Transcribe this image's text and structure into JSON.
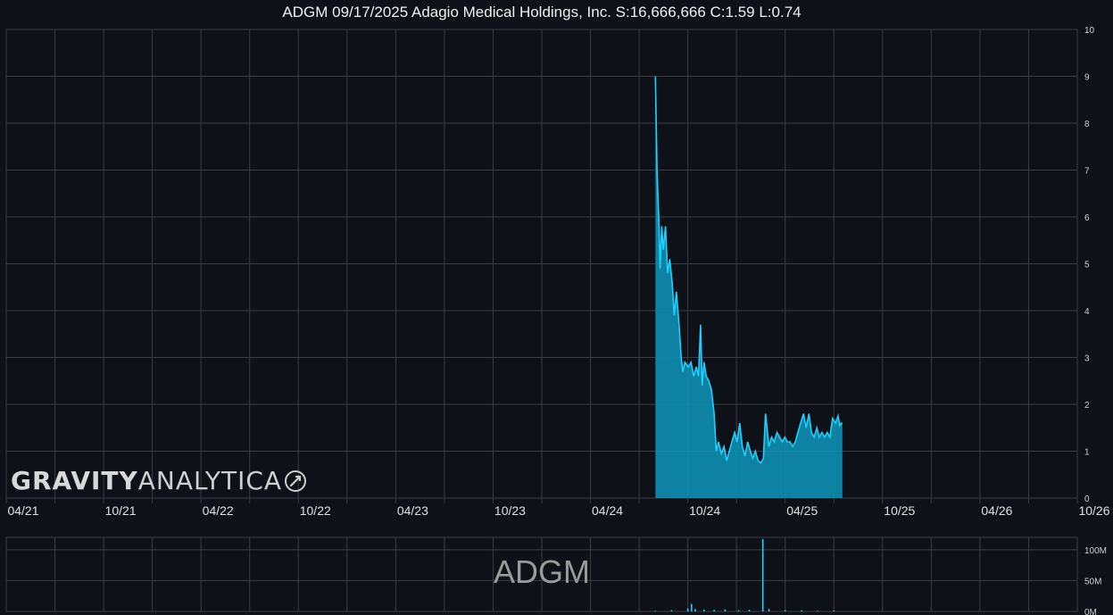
{
  "title": "ADGM 09/17/2025 Adagio Medical Holdings, Inc. S:16,666,666 C:1.59 L:0.74",
  "watermark": {
    "bold": "GRAVITY",
    "light": "ANALYTICA"
  },
  "volume_label": "ADGM",
  "colors": {
    "background": "#0e1117",
    "grid": "#3a3d44",
    "line": "#1fd0ff",
    "fill": "#0e8fb3"
  },
  "chart_data": [
    {
      "type": "area",
      "title": "ADGM 09/17/2025 Adagio Medical Holdings, Inc. S:16,666,666 C:1.59 L:0.74",
      "xlabel": "",
      "ylabel": "",
      "x_range": [
        "2021-04",
        "2026-10"
      ],
      "ylim": [
        0,
        10
      ],
      "grid": true,
      "x_ticks": [
        "04/21",
        "10/21",
        "04/22",
        "10/22",
        "04/23",
        "10/23",
        "04/24",
        "10/24",
        "04/25",
        "10/25",
        "04/26",
        "10/26"
      ],
      "y_ticks": [
        0,
        1,
        2,
        3,
        4,
        5,
        6,
        7,
        8,
        9,
        10
      ],
      "points": [
        [
          "2024-08-01",
          9.0
        ],
        [
          "2024-08-04",
          7.0
        ],
        [
          "2024-08-08",
          5.8
        ],
        [
          "2024-08-10",
          4.9
        ],
        [
          "2024-08-13",
          5.8
        ],
        [
          "2024-08-16",
          5.3
        ],
        [
          "2024-08-20",
          5.8
        ],
        [
          "2024-08-24",
          4.8
        ],
        [
          "2024-08-28",
          5.1
        ],
        [
          "2024-09-02",
          4.6
        ],
        [
          "2024-09-06",
          3.9
        ],
        [
          "2024-09-10",
          4.4
        ],
        [
          "2024-09-15",
          3.7
        ],
        [
          "2024-09-19",
          3.0
        ],
        [
          "2024-09-22",
          2.7
        ],
        [
          "2024-09-26",
          2.9
        ],
        [
          "2024-10-02",
          2.8
        ],
        [
          "2024-10-07",
          2.9
        ],
        [
          "2024-10-12",
          2.6
        ],
        [
          "2024-10-17",
          2.8
        ],
        [
          "2024-10-21",
          2.6
        ],
        [
          "2024-10-25",
          3.7
        ],
        [
          "2024-10-28",
          2.4
        ],
        [
          "2024-11-01",
          2.9
        ],
        [
          "2024-11-05",
          2.6
        ],
        [
          "2024-11-10",
          2.5
        ],
        [
          "2024-11-15",
          2.3
        ],
        [
          "2024-11-20",
          1.8
        ],
        [
          "2024-11-24",
          1.0
        ],
        [
          "2024-11-28",
          1.2
        ],
        [
          "2024-12-03",
          0.95
        ],
        [
          "2024-12-08",
          1.1
        ],
        [
          "2024-12-13",
          0.8
        ],
        [
          "2024-12-18",
          1.0
        ],
        [
          "2024-12-23",
          1.2
        ],
        [
          "2024-12-28",
          1.4
        ],
        [
          "2025-01-02",
          1.2
        ],
        [
          "2025-01-07",
          1.6
        ],
        [
          "2025-01-12",
          1.1
        ],
        [
          "2025-01-17",
          0.9
        ],
        [
          "2025-01-22",
          1.2
        ],
        [
          "2025-01-27",
          1.0
        ],
        [
          "2025-02-01",
          0.85
        ],
        [
          "2025-02-06",
          1.0
        ],
        [
          "2025-02-11",
          0.8
        ],
        [
          "2025-02-16",
          0.75
        ],
        [
          "2025-02-21",
          0.85
        ],
        [
          "2025-02-25",
          1.8
        ],
        [
          "2025-03-01",
          1.1
        ],
        [
          "2025-03-06",
          1.3
        ],
        [
          "2025-03-11",
          1.2
        ],
        [
          "2025-03-16",
          1.4
        ],
        [
          "2025-03-21",
          1.3
        ],
        [
          "2025-03-26",
          1.2
        ],
        [
          "2025-03-31",
          1.3
        ],
        [
          "2025-04-05",
          1.2
        ],
        [
          "2025-04-10",
          1.2
        ],
        [
          "2025-04-15",
          1.1
        ],
        [
          "2025-04-20",
          1.2
        ],
        [
          "2025-04-25",
          1.4
        ],
        [
          "2025-04-30",
          1.6
        ],
        [
          "2025-05-05",
          1.8
        ],
        [
          "2025-05-10",
          1.5
        ],
        [
          "2025-05-15",
          1.8
        ],
        [
          "2025-05-20",
          1.4
        ],
        [
          "2025-05-25",
          1.3
        ],
        [
          "2025-05-30",
          1.5
        ],
        [
          "2025-06-04",
          1.3
        ],
        [
          "2025-06-09",
          1.4
        ],
        [
          "2025-06-14",
          1.3
        ],
        [
          "2025-06-19",
          1.4
        ],
        [
          "2025-06-24",
          1.3
        ],
        [
          "2025-06-29",
          1.7
        ],
        [
          "2025-07-04",
          1.6
        ],
        [
          "2025-07-09",
          1.75
        ],
        [
          "2025-07-12",
          1.55
        ],
        [
          "2025-07-15",
          1.6
        ],
        [
          "2025-07-17",
          1.59
        ]
      ]
    },
    {
      "type": "bar",
      "title": "",
      "xlabel": "",
      "ylabel": "",
      "ylim": [
        0,
        120
      ],
      "y_ticks": [
        0,
        50,
        100
      ],
      "y_tick_labels": [
        "0M",
        "50M",
        "100M"
      ],
      "points": [
        [
          "2024-08-01",
          1.0
        ],
        [
          "2024-09-01",
          2.0
        ],
        [
          "2024-10-01",
          5.0
        ],
        [
          "2024-10-08",
          12.0
        ],
        [
          "2024-10-15",
          4.0
        ],
        [
          "2024-11-01",
          3.0
        ],
        [
          "2024-11-20",
          2.5
        ],
        [
          "2024-12-10",
          3.5
        ],
        [
          "2025-01-05",
          2.0
        ],
        [
          "2025-01-25",
          2.5
        ],
        [
          "2025-02-20",
          117.0
        ],
        [
          "2025-03-01",
          4.0
        ],
        [
          "2025-04-01",
          2.0
        ],
        [
          "2025-05-01",
          1.5
        ],
        [
          "2025-06-01",
          1.0
        ],
        [
          "2025-07-01",
          1.5
        ]
      ]
    }
  ]
}
